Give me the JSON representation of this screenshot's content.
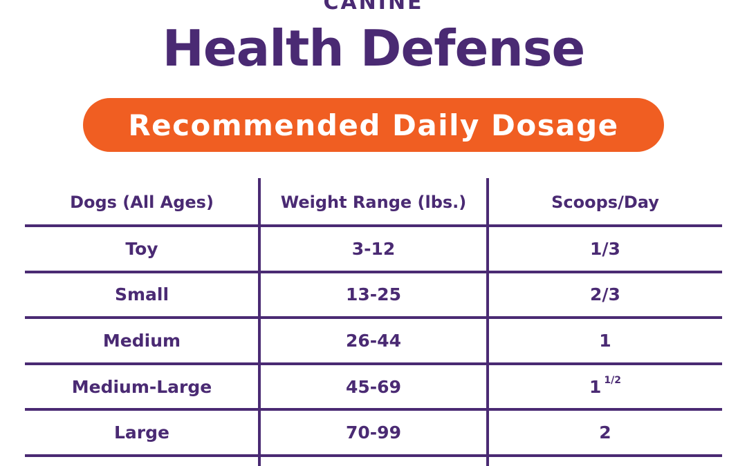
{
  "header": {
    "eyebrow": "CANINE",
    "title": "Health Defense",
    "banner": "Recommended Daily Dosage"
  },
  "table": {
    "columns": [
      "Dogs (All Ages)",
      "Weight Range (lbs.)",
      "Scoops/Day"
    ],
    "rows": [
      {
        "size": "Toy",
        "weight": "3-12",
        "scoops": "1/3",
        "scoops_fraction": ""
      },
      {
        "size": "Small",
        "weight": "13-25",
        "scoops": "2/3",
        "scoops_fraction": ""
      },
      {
        "size": "Medium",
        "weight": "26-44",
        "scoops": "1",
        "scoops_fraction": ""
      },
      {
        "size": "Medium-Large",
        "weight": "45-69",
        "scoops": "1",
        "scoops_fraction": "1/2"
      },
      {
        "size": "Large",
        "weight": "70-99",
        "scoops": "2",
        "scoops_fraction": ""
      }
    ]
  },
  "colors": {
    "brand_purple": "#4a2a73",
    "accent_orange": "#f05e22"
  }
}
